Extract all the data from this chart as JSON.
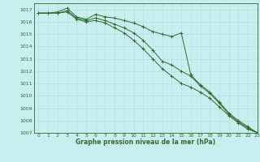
{
  "title": "Graphe pression niveau de la mer (hPa)",
  "background_color": "#c8eef0",
  "grid_color": "#b8dde0",
  "line_color": "#2d6e2d",
  "xlim": [
    -0.5,
    23
  ],
  "ylim": [
    1007,
    1017.5
  ],
  "xticks": [
    0,
    1,
    2,
    3,
    4,
    5,
    6,
    7,
    8,
    9,
    10,
    11,
    12,
    13,
    14,
    15,
    16,
    17,
    18,
    19,
    20,
    21,
    22,
    23
  ],
  "yticks": [
    1007,
    1008,
    1009,
    1010,
    1011,
    1012,
    1013,
    1014,
    1015,
    1016,
    1017
  ],
  "series": [
    [
      1016.7,
      1016.7,
      1016.8,
      1017.1,
      1016.4,
      1016.2,
      1016.6,
      1016.4,
      1016.3,
      1016.1,
      1015.9,
      1015.6,
      1015.2,
      1015.0,
      1014.8,
      1015.1,
      1011.7,
      1010.9,
      1010.3,
      1009.5,
      1008.6,
      1008.0,
      1007.5,
      1007.0
    ],
    [
      1016.7,
      1016.7,
      1016.7,
      1016.9,
      1016.3,
      1016.1,
      1016.3,
      1016.1,
      1015.8,
      1015.5,
      1015.1,
      1014.5,
      1013.7,
      1012.8,
      1012.5,
      1012.0,
      1011.6,
      1010.8,
      1010.2,
      1009.4,
      1008.5,
      1007.9,
      1007.4,
      1007.0
    ],
    [
      1016.7,
      1016.7,
      1016.7,
      1016.8,
      1016.2,
      1016.0,
      1016.1,
      1015.9,
      1015.5,
      1015.1,
      1014.5,
      1013.8,
      1013.0,
      1012.2,
      1011.6,
      1011.0,
      1010.7,
      1010.3,
      1009.8,
      1009.1,
      1008.4,
      1007.8,
      1007.3,
      1007.0
    ]
  ]
}
